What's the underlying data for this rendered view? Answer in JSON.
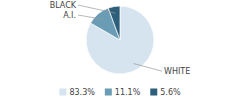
{
  "chart_data": {
    "type": "pie",
    "categories": [
      "WHITE",
      "A.I.",
      "BLACK"
    ],
    "values": [
      83.3,
      11.1,
      5.6
    ],
    "value_labels": [
      "83.3%",
      "11.1%",
      "5.6%"
    ],
    "colors": [
      "#d6e4ef",
      "#6a9db5",
      "#2e5f7a"
    ],
    "legend": "bottom"
  }
}
